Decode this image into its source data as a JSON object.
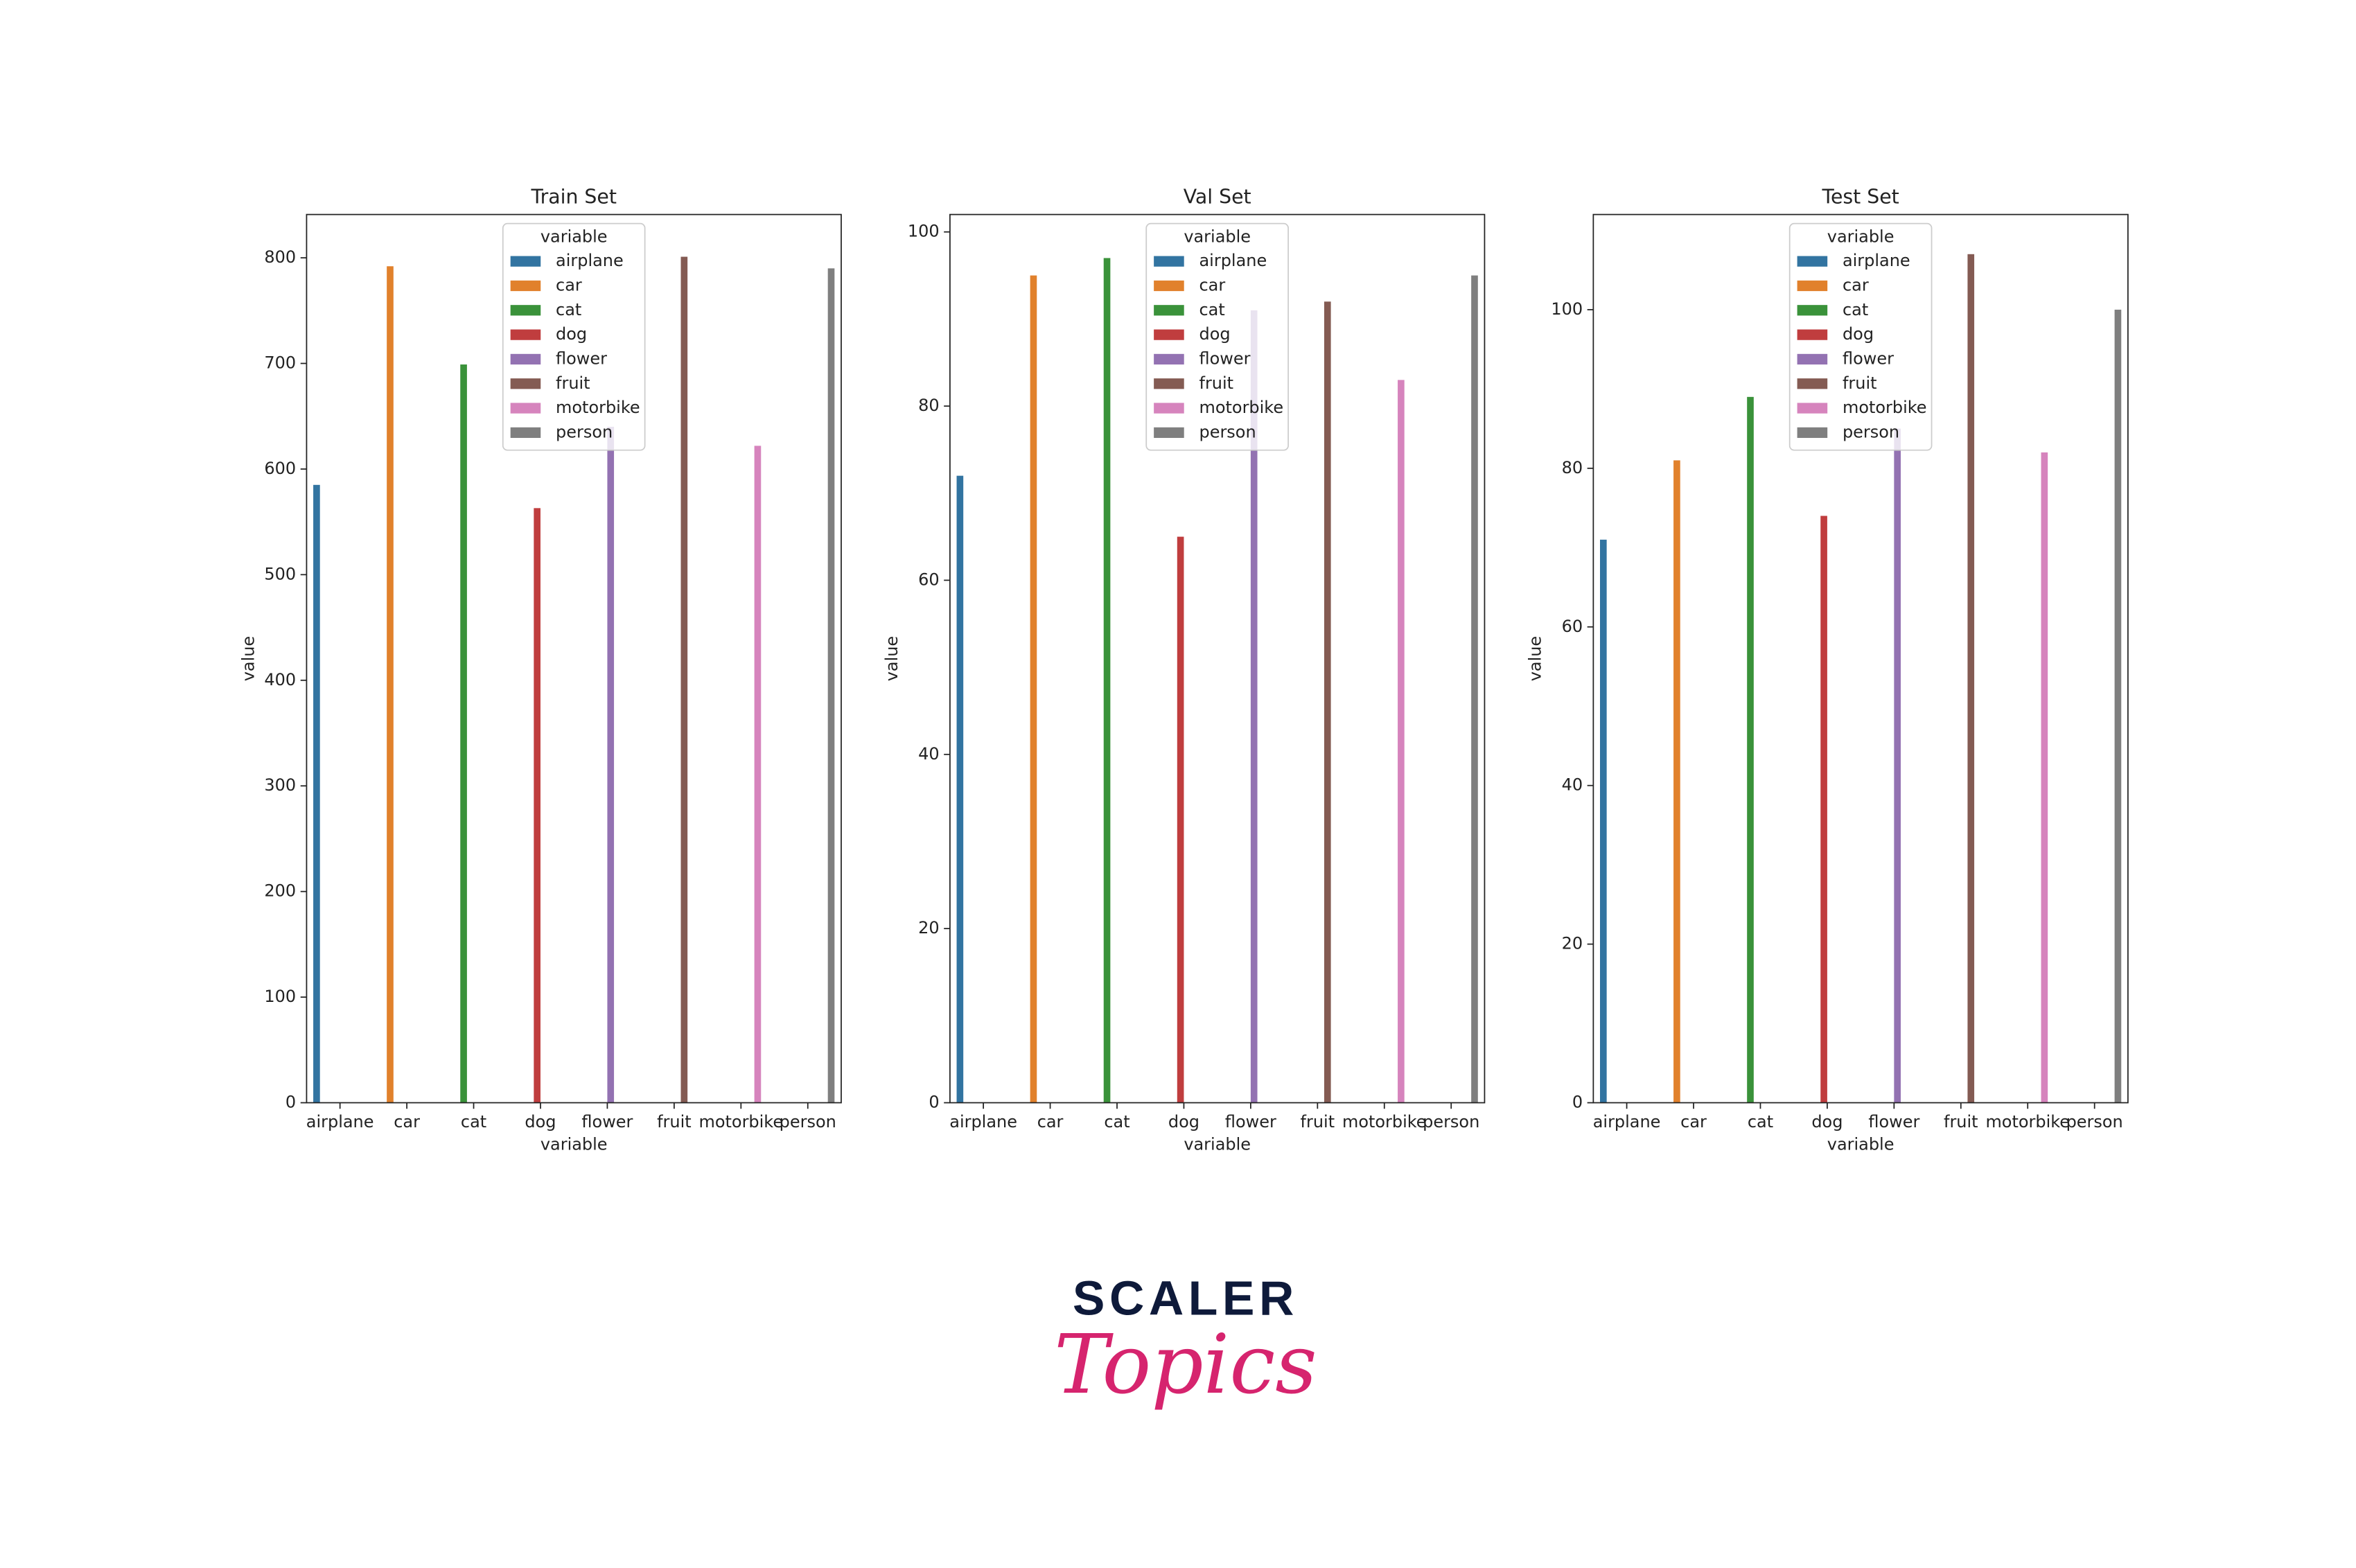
{
  "chart_data": [
    {
      "type": "bar",
      "title": "Train Set",
      "xlabel": "variable",
      "ylabel": "value",
      "categories": [
        "airplane",
        "car",
        "cat",
        "dog",
        "flower",
        "fruit",
        "motorbike",
        "person"
      ],
      "values": [
        585,
        792,
        699,
        563,
        640,
        801,
        622,
        790
      ],
      "colors": [
        "#3274a1",
        "#e1812c",
        "#3a923a",
        "#c03d3e",
        "#9372b2",
        "#845b53",
        "#d684bd",
        "#7f7f7f"
      ],
      "ylim": [
        0,
        841
      ],
      "yticks": [
        0,
        100,
        200,
        300,
        400,
        500,
        600,
        700,
        800
      ],
      "legend_title": "variable",
      "legend": "upper center"
    },
    {
      "type": "bar",
      "title": "Val Set",
      "xlabel": "variable",
      "ylabel": "value",
      "categories": [
        "airplane",
        "car",
        "cat",
        "dog",
        "flower",
        "fruit",
        "motorbike",
        "person"
      ],
      "values": [
        72,
        95,
        97,
        65,
        91,
        92,
        83,
        95
      ],
      "colors": [
        "#3274a1",
        "#e1812c",
        "#3a923a",
        "#c03d3e",
        "#9372b2",
        "#845b53",
        "#d684bd",
        "#7f7f7f"
      ],
      "ylim": [
        0,
        102
      ],
      "yticks": [
        0,
        20,
        40,
        60,
        80,
        100
      ],
      "legend_title": "variable",
      "legend": "upper center"
    },
    {
      "type": "bar",
      "title": "Test Set",
      "xlabel": "variable",
      "ylabel": "value",
      "categories": [
        "airplane",
        "car",
        "cat",
        "dog",
        "flower",
        "fruit",
        "motorbike",
        "person"
      ],
      "values": [
        71,
        81,
        89,
        74,
        85,
        107,
        82,
        100
      ],
      "colors": [
        "#3274a1",
        "#e1812c",
        "#3a923a",
        "#c03d3e",
        "#9372b2",
        "#845b53",
        "#d684bd",
        "#7f7f7f"
      ],
      "ylim": [
        0,
        112
      ],
      "yticks": [
        0,
        20,
        40,
        60,
        80,
        100
      ],
      "legend_title": "variable",
      "legend": "upper center"
    }
  ],
  "logo": {
    "line1": "SCALER",
    "line2": "Topics"
  }
}
